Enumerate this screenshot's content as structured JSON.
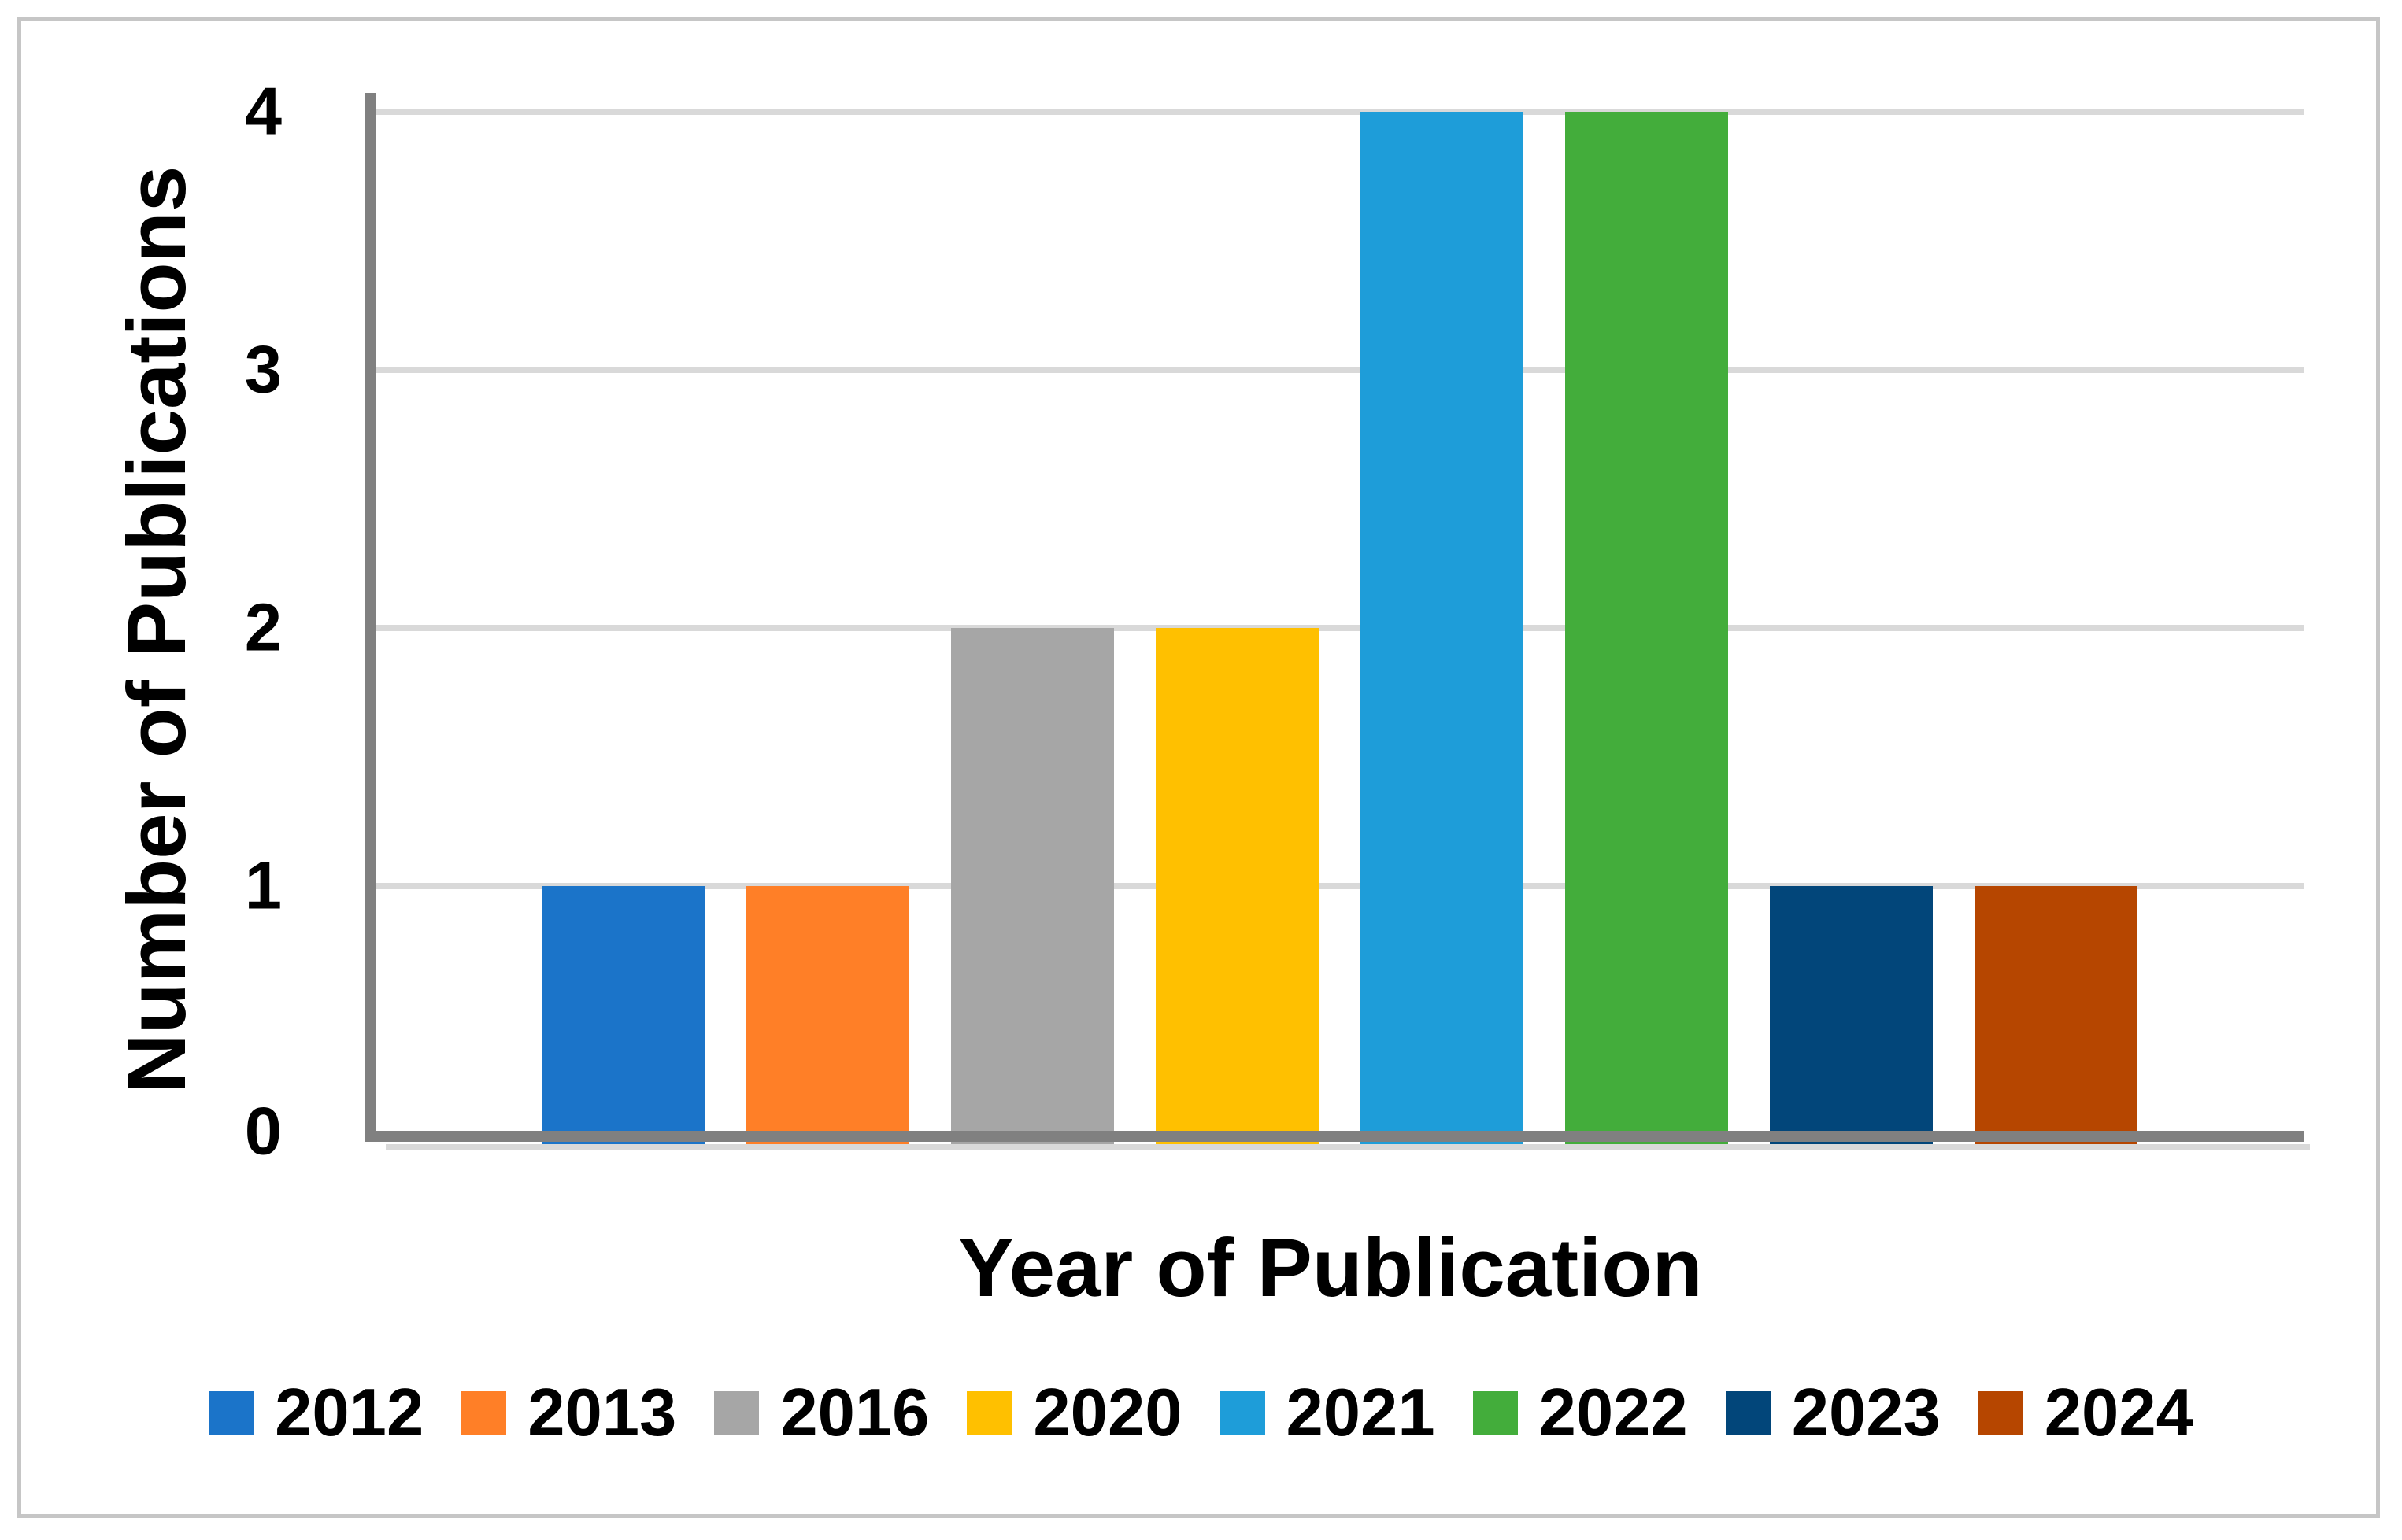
{
  "chart_data": {
    "type": "bar",
    "title": "",
    "xlabel": "Year of Publication",
    "ylabel": "Number of Publications",
    "categories": [
      "2012",
      "2013",
      "2016",
      "2020",
      "2021",
      "2022",
      "2023",
      "2024"
    ],
    "values": [
      1,
      1,
      2,
      2,
      4,
      4,
      1,
      1
    ],
    "bar_colors": [
      "#1B74C9",
      "#FF7F27",
      "#A6A6A6",
      "#FFC000",
      "#1E9DD9",
      "#43AD3B",
      "#02467A",
      "#B64600"
    ],
    "ylim": [
      0,
      4
    ],
    "yticks": [
      "0",
      "1",
      "2",
      "3",
      "4"
    ],
    "grid": "horizontal",
    "legend_position": "bottom",
    "legend_entries": [
      "2012",
      "2013",
      "2016",
      "2020",
      "2021",
      "2022",
      "2023",
      "2024"
    ],
    "axis_color": "#808080",
    "gridline_color": "#D9D9D9",
    "figure_border_color": "#C6C6C6",
    "text_color": "#000000",
    "background_color": "#FFFFFF"
  }
}
